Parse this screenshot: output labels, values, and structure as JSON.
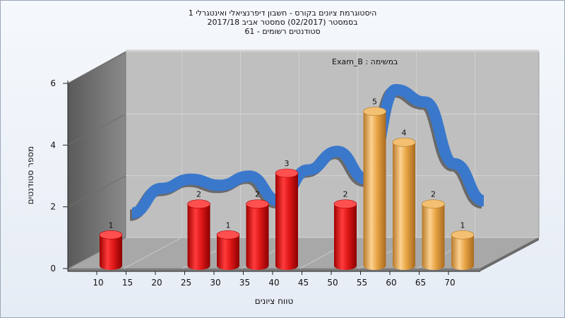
{
  "chart_data": {
    "type": "bar",
    "title_lines": [
      "היסטוגרמת ציונים בקורס - חשבון דיפרנציאלי ואינטגרלי 1",
      "בסמסטר (02/2017) סמסטר אביב 2017/18",
      "סטודנטים רשומים - 61"
    ],
    "subtitle": "במשימה : Exam_B",
    "xlabel": "טווח ציונים",
    "ylabel": "מספר סטודנטים",
    "x_ticks": [
      10,
      15,
      20,
      25,
      30,
      35,
      40,
      45,
      50,
      55,
      60,
      65,
      70
    ],
    "y_ticks": [
      0,
      2,
      4,
      6
    ],
    "ylim": [
      0,
      6
    ],
    "bars": [
      {
        "x": 10,
        "value": 1,
        "color": "red"
      },
      {
        "x": 25,
        "value": 2,
        "color": "red"
      },
      {
        "x": 30,
        "value": 1,
        "color": "red"
      },
      {
        "x": 35,
        "value": 2,
        "color": "red"
      },
      {
        "x": 40,
        "value": 3,
        "color": "red"
      },
      {
        "x": 50,
        "value": 2,
        "color": "red"
      },
      {
        "x": 55,
        "value": 5,
        "color": "orange"
      },
      {
        "x": 60,
        "value": 4,
        "color": "orange"
      },
      {
        "x": 65,
        "value": 2,
        "color": "orange"
      },
      {
        "x": 70,
        "value": 1,
        "color": "orange"
      }
    ],
    "smooth_curve": [
      {
        "x": 10,
        "y": 1.2
      },
      {
        "x": 15,
        "y": 2.0
      },
      {
        "x": 20,
        "y": 2.3
      },
      {
        "x": 25,
        "y": 2.1
      },
      {
        "x": 30,
        "y": 2.4
      },
      {
        "x": 35,
        "y": 1.6
      },
      {
        "x": 40,
        "y": 2.6
      },
      {
        "x": 45,
        "y": 3.2
      },
      {
        "x": 50,
        "y": 2.3
      },
      {
        "x": 55,
        "y": 5.2
      },
      {
        "x": 60,
        "y": 4.8
      },
      {
        "x": 65,
        "y": 2.8
      },
      {
        "x": 70,
        "y": 1.6
      }
    ],
    "colors": {
      "red": "#e01818",
      "orange": "#e8a545",
      "curve_front": "#3a78cc",
      "curve_back": "#606060"
    }
  }
}
